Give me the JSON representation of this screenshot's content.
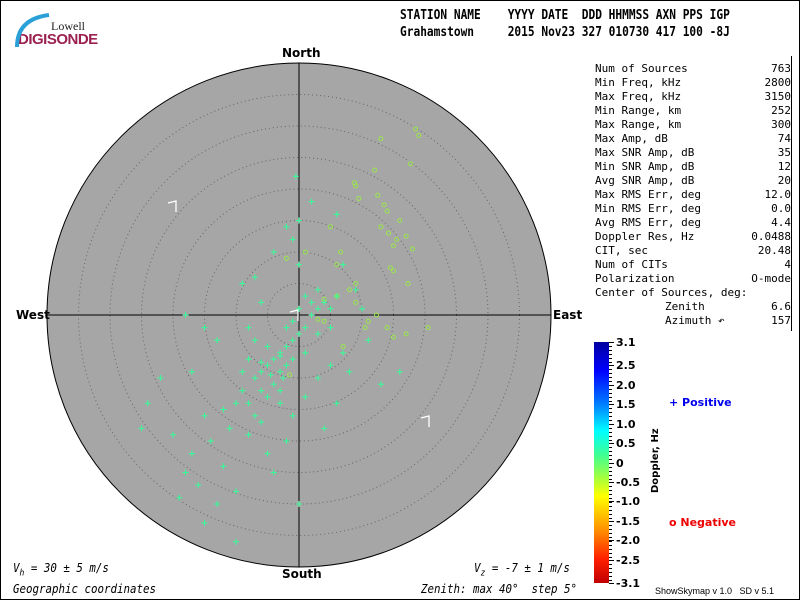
{
  "logo": {
    "line1": "Lowell",
    "line2": "DIGISONDE"
  },
  "header": {
    "labels": "STATION NAME    YYYY DATE  DDD HHMMSS AXN PPS IGP",
    "values": "Grahamstown     2015 Nov23 327 010730 417 100 -8J"
  },
  "compass": {
    "north": "North",
    "south": "South",
    "east": "East",
    "west": "West"
  },
  "stats": [
    {
      "label": "Num of Sources",
      "value": "763"
    },
    {
      "label": "Min Freq, kHz",
      "value": "2800"
    },
    {
      "label": "Max Freq, kHz",
      "value": "3150"
    },
    {
      "label": "Min Range, km",
      "value": "252"
    },
    {
      "label": "Max Range, km",
      "value": "300"
    },
    {
      "label": "Max Amp, dB",
      "value": "74"
    },
    {
      "label": "Max SNR Amp, dB",
      "value": "35"
    },
    {
      "label": "Min SNR Amp, dB",
      "value": "12"
    },
    {
      "label": "Avg SNR Amp, dB",
      "value": "20"
    },
    {
      "label": "Max RMS Err, deg",
      "value": "12.0"
    },
    {
      "label": "Min RMS Err, deg",
      "value": "0.0"
    },
    {
      "label": "Avg RMS Err, deg",
      "value": "4.4"
    },
    {
      "label": "Doppler Res, Hz",
      "value": "0.0488"
    },
    {
      "label": "CIT, sec",
      "value": "20.48"
    },
    {
      "label": "Num of CITs",
      "value": "4"
    },
    {
      "label": "Polarization",
      "value": "O-mode"
    }
  ],
  "center": {
    "title": "Center of Sources, deg:",
    "zenith_label": "Zenith",
    "zenith": "6.6",
    "azimuth_label": "Azimuth ↶",
    "azimuth": "157"
  },
  "footer": {
    "vh_sym": "V",
    "vh_sub": "h",
    "vh_rest": " = 30 ± 5 m/s",
    "vz_sym": "V",
    "vz_sub": "z",
    "vz_rest": " = -7 ± 1 m/s",
    "coords": "Geographic coordinates",
    "zenith": "Zenith: max 40°  step 5°",
    "version": "ShowSkymap v 1.0   SD v 5.1"
  },
  "chart_data": {
    "type": "scatter",
    "projection": "polar-skymap",
    "zenith_max_deg": 40,
    "zenith_step_deg": 5,
    "colorbar": {
      "label": "Doppler, Hz",
      "range": [
        -3.1,
        3.1
      ],
      "ticks": [
        "3.1",
        "2.5",
        "2.0",
        "1.5",
        "1.0",
        "0.5",
        "0",
        "-0.5",
        "-1.0",
        "-1.5",
        "-2.0",
        "-2.5",
        "-3.1"
      ],
      "tick_values": [
        3.1,
        2.5,
        2.0,
        1.5,
        1.0,
        0.5,
        0,
        -0.5,
        -1.0,
        -1.5,
        -2.0,
        -2.5,
        -3.1
      ]
    },
    "legend": {
      "positive": "Positive",
      "negative": "Negative",
      "positive_color": "#0000ee",
      "negative_color": "#ee0000"
    },
    "point_units": "[east_deg, north_deg]",
    "positive": {
      "doppler_hz": 0.7,
      "color": "#33ff99",
      "points": [
        [
          -4,
          -7
        ],
        [
          -5,
          -8
        ],
        [
          -3,
          -6
        ],
        [
          -6,
          -9
        ],
        [
          -2,
          -5
        ],
        [
          -7,
          -10
        ],
        [
          -4,
          -11
        ],
        [
          -1,
          -4
        ],
        [
          -3,
          -9
        ],
        [
          -5,
          -5
        ],
        [
          -8,
          -7
        ],
        [
          -6,
          -12
        ],
        [
          -2,
          -8
        ],
        [
          0,
          -3
        ],
        [
          1,
          -2
        ],
        [
          2,
          0
        ],
        [
          3,
          1
        ],
        [
          4,
          2
        ],
        [
          2,
          2
        ],
        [
          5,
          1
        ],
        [
          1,
          3
        ],
        [
          -1,
          -1
        ],
        [
          -9,
          -12
        ],
        [
          -10,
          -14
        ],
        [
          -12,
          -15
        ],
        [
          -11,
          -18
        ],
        [
          -14,
          -20
        ],
        [
          -15,
          -16
        ],
        [
          -17,
          -22
        ],
        [
          -18,
          -25
        ],
        [
          -16,
          -27
        ],
        [
          -12,
          -24
        ],
        [
          -10,
          -28
        ],
        [
          -13,
          -30
        ],
        [
          -15,
          -33
        ],
        [
          -10,
          -36
        ],
        [
          -20,
          -19
        ],
        [
          -24,
          -14
        ],
        [
          -22,
          -10
        ],
        [
          -17,
          -9
        ],
        [
          -13,
          -4
        ],
        [
          -18,
          0
        ],
        [
          -15,
          -2
        ],
        [
          -8,
          -2
        ],
        [
          -6,
          2
        ],
        [
          -3,
          -14
        ],
        [
          -1,
          -16
        ],
        [
          1,
          -13
        ],
        [
          3,
          -10
        ],
        [
          5,
          -8
        ],
        [
          7,
          -6
        ],
        [
          6,
          -14
        ],
        [
          4,
          -18
        ],
        [
          -2,
          -20
        ],
        [
          -5,
          -22
        ],
        [
          -8,
          -19
        ],
        [
          0,
          8
        ],
        [
          -1,
          12
        ],
        [
          -2,
          14
        ],
        [
          0,
          15
        ],
        [
          2,
          18
        ],
        [
          -0.5,
          22
        ],
        [
          6,
          16
        ],
        [
          7,
          8
        ],
        [
          9,
          4
        ],
        [
          10,
          1
        ],
        [
          11,
          -4
        ],
        [
          -4,
          10
        ],
        [
          -7,
          6
        ],
        [
          -9,
          5
        ],
        [
          0,
          -30
        ],
        [
          -19,
          -29
        ],
        [
          -25,
          -18
        ],
        [
          13,
          -11
        ],
        [
          16,
          -9
        ],
        [
          8,
          -9
        ],
        [
          -7,
          -16
        ],
        [
          -4,
          -25
        ],
        [
          -3,
          -6.5
        ],
        [
          -6,
          -7.5
        ],
        [
          -4.5,
          -9.5
        ],
        [
          -2.5,
          -10
        ],
        [
          -7,
          -4
        ],
        [
          -9,
          -9
        ],
        [
          3,
          -3
        ],
        [
          5,
          -2
        ],
        [
          -5,
          -13
        ],
        [
          -3,
          -12
        ],
        [
          -8,
          -14
        ],
        [
          -6,
          -17
        ],
        [
          -1,
          -7
        ],
        [
          1,
          -6
        ],
        [
          -2,
          -2
        ],
        [
          0,
          1
        ],
        [
          3,
          4
        ],
        [
          6,
          3
        ]
      ]
    },
    "negative": {
      "doppler_hz": -0.3,
      "color": "#99e64d",
      "points": [
        [
          13,
          28
        ],
        [
          18.5,
          29.5
        ],
        [
          19,
          28.5
        ],
        [
          17.7,
          24
        ],
        [
          12,
          23
        ],
        [
          9,
          20.5
        ],
        [
          8.8,
          21
        ],
        [
          9.5,
          18.5
        ],
        [
          13.5,
          17.5
        ],
        [
          14,
          16.5
        ],
        [
          12.5,
          19
        ],
        [
          13,
          14
        ],
        [
          16,
          15
        ],
        [
          14.2,
          13
        ],
        [
          15,
          11
        ],
        [
          18,
          10.5
        ],
        [
          14.5,
          7.5
        ],
        [
          17.3,
          5
        ],
        [
          9,
          5
        ],
        [
          6,
          3
        ],
        [
          4,
          2.5
        ],
        [
          8,
          4
        ],
        [
          11,
          -1
        ],
        [
          12.3,
          0
        ],
        [
          14,
          -2
        ],
        [
          17,
          -3
        ],
        [
          20.5,
          -2
        ],
        [
          7,
          -5
        ],
        [
          4,
          -1
        ],
        [
          -2,
          9
        ],
        [
          1,
          10
        ],
        [
          6,
          8
        ],
        [
          9,
          2
        ],
        [
          15,
          7
        ],
        [
          15.5,
          12
        ],
        [
          17,
          12.5
        ],
        [
          10.5,
          -2
        ],
        [
          -1.5,
          -9.5
        ],
        [
          5,
          14
        ],
        [
          6.6,
          10
        ],
        [
          3,
          -0.7
        ],
        [
          15,
          -3.5
        ]
      ]
    }
  }
}
